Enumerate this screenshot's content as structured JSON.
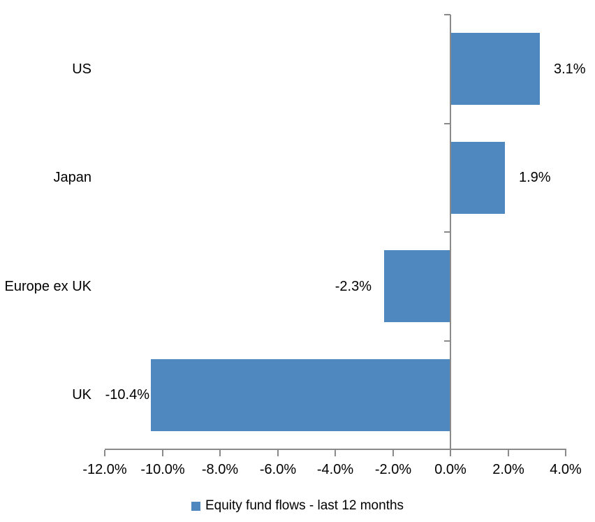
{
  "chart_data": {
    "type": "bar",
    "orientation": "horizontal",
    "title": "",
    "categories": [
      "US",
      "Japan",
      "Europe ex UK",
      "UK"
    ],
    "values": [
      3.1,
      1.9,
      -2.3,
      -10.4
    ],
    "data_labels": [
      "3.1%",
      "1.9%",
      "-2.3%",
      "-10.4%"
    ],
    "series_name": "Equity fund flows - last 12 months",
    "xlim": [
      -12,
      4
    ],
    "x_ticks": [
      {
        "value": -12,
        "label": "-12.0%"
      },
      {
        "value": -10,
        "label": "-10.0%"
      },
      {
        "value": -8,
        "label": "-8.0%"
      },
      {
        "value": -6,
        "label": "-6.0%"
      },
      {
        "value": -4,
        "label": "-4.0%"
      },
      {
        "value": -2,
        "label": "-2.0%"
      },
      {
        "value": 0,
        "label": "0.0%"
      },
      {
        "value": 2,
        "label": "2.0%"
      },
      {
        "value": 4,
        "label": "4.0%"
      }
    ],
    "grid": false,
    "legend_position": "bottom",
    "colors": {
      "bar": "#4E88BE",
      "axis": "#8A8A8A",
      "text": "#000000",
      "background": "#FFFFFF"
    }
  },
  "legend": {
    "label": "Equity fund flows - last 12 months"
  }
}
